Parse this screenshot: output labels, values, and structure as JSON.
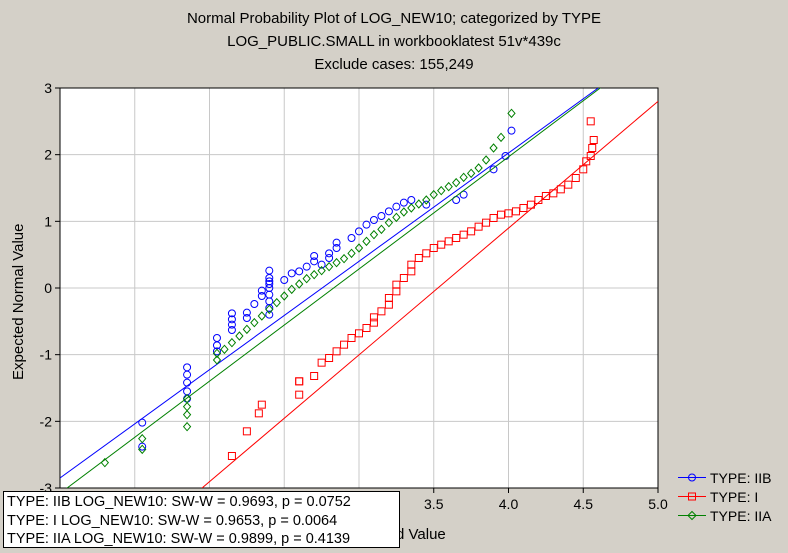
{
  "title_lines": [
    "Normal Probability Plot of LOG_NEW10; categorized by TYPE",
    "LOG_PUBLIC.SMALL in workbooklatest 51v*439c",
    "Exclude cases: 155,249"
  ],
  "colors": {
    "IIB": "#0000ff",
    "I": "#ff0000",
    "IIA": "#008000",
    "grid": "#c8c8c8",
    "background": "#d4d0c8"
  },
  "chart_data": {
    "type": "scatter",
    "title": "Normal Probability Plot of LOG_NEW10; categorized by TYPE",
    "ylabel": "Expected Normal Value",
    "xlabel_visible_fragment": "d Value",
    "xlim": [
      1.0,
      5.0
    ],
    "ylim": [
      -3,
      3
    ],
    "x_tick_labels_visible": [
      "3.5",
      "4.0",
      "4.5",
      "5.0"
    ],
    "y_tick_labels": [
      "3",
      "2",
      "1",
      "0",
      "-1",
      "-2",
      "-3"
    ],
    "grid": true,
    "legend_position": "bottom-right",
    "series": [
      {
        "name": "TYPE: IIB",
        "marker": "circle",
        "fit_line": [
          [
            1.0,
            -2.85
          ],
          [
            5.0,
            3.65
          ]
        ],
        "points": [
          [
            1.55,
            -2.38
          ],
          [
            1.55,
            -2.02
          ],
          [
            1.85,
            -1.66
          ],
          [
            1.85,
            -1.55
          ],
          [
            1.85,
            -1.42
          ],
          [
            1.85,
            -1.3
          ],
          [
            1.85,
            -1.19
          ],
          [
            2.05,
            -0.95
          ],
          [
            2.05,
            -0.86
          ],
          [
            2.05,
            -0.75
          ],
          [
            2.15,
            -0.63
          ],
          [
            2.15,
            -0.55
          ],
          [
            2.15,
            -0.47
          ],
          [
            2.15,
            -0.38
          ],
          [
            2.25,
            -0.45
          ],
          [
            2.25,
            -0.37
          ],
          [
            2.3,
            -0.24
          ],
          [
            2.35,
            -0.12
          ],
          [
            2.35,
            -0.04
          ],
          [
            2.4,
            0.06
          ],
          [
            2.4,
            0.1
          ],
          [
            2.4,
            -0.4
          ],
          [
            2.4,
            -0.3
          ],
          [
            2.4,
            -0.2
          ],
          [
            2.4,
            -0.1
          ],
          [
            2.4,
            0.0
          ],
          [
            2.4,
            0.15
          ],
          [
            2.4,
            0.26
          ],
          [
            2.5,
            0.12
          ],
          [
            2.55,
            0.22
          ],
          [
            2.6,
            0.25
          ],
          [
            2.65,
            0.32
          ],
          [
            2.7,
            0.4
          ],
          [
            2.7,
            0.48
          ],
          [
            2.75,
            0.35
          ],
          [
            2.8,
            0.45
          ],
          [
            2.8,
            0.52
          ],
          [
            2.85,
            0.6
          ],
          [
            2.85,
            0.68
          ],
          [
            2.95,
            0.75
          ],
          [
            3.0,
            0.85
          ],
          [
            3.05,
            0.95
          ],
          [
            3.1,
            1.02
          ],
          [
            3.15,
            1.08
          ],
          [
            3.2,
            1.15
          ],
          [
            3.25,
            1.22
          ],
          [
            3.3,
            1.28
          ],
          [
            3.35,
            1.32
          ],
          [
            3.45,
            1.25
          ],
          [
            3.65,
            1.32
          ],
          [
            3.7,
            1.4
          ],
          [
            3.9,
            1.78
          ],
          [
            3.98,
            1.98
          ],
          [
            4.02,
            2.36
          ]
        ]
      },
      {
        "name": "TYPE: I",
        "marker": "square",
        "fit_line": [
          [
            1.95,
            -3.0
          ],
          [
            5.0,
            2.8
          ]
        ],
        "points": [
          [
            2.25,
            -2.15
          ],
          [
            2.15,
            -2.52
          ],
          [
            2.33,
            -1.88
          ],
          [
            2.35,
            -1.75
          ],
          [
            2.6,
            -1.6
          ],
          [
            2.6,
            -1.4
          ],
          [
            2.6,
            -1.4
          ],
          [
            2.7,
            -1.32
          ],
          [
            2.75,
            -1.12
          ],
          [
            2.8,
            -1.05
          ],
          [
            2.85,
            -0.95
          ],
          [
            2.9,
            -0.85
          ],
          [
            2.95,
            -0.75
          ],
          [
            3.0,
            -0.68
          ],
          [
            3.05,
            -0.6
          ],
          [
            3.1,
            -0.52
          ],
          [
            3.1,
            -0.44
          ],
          [
            3.15,
            -0.35
          ],
          [
            3.2,
            -0.25
          ],
          [
            3.2,
            -0.15
          ],
          [
            3.25,
            -0.05
          ],
          [
            3.25,
            0.05
          ],
          [
            3.3,
            0.15
          ],
          [
            3.35,
            0.25
          ],
          [
            3.35,
            0.35
          ],
          [
            3.4,
            0.45
          ],
          [
            3.45,
            0.52
          ],
          [
            3.5,
            0.6
          ],
          [
            3.55,
            0.65
          ],
          [
            3.6,
            0.7
          ],
          [
            3.65,
            0.75
          ],
          [
            3.7,
            0.8
          ],
          [
            3.75,
            0.85
          ],
          [
            3.8,
            0.92
          ],
          [
            3.85,
            0.98
          ],
          [
            3.9,
            1.05
          ],
          [
            3.95,
            1.1
          ],
          [
            4.0,
            1.12
          ],
          [
            4.05,
            1.15
          ],
          [
            4.1,
            1.2
          ],
          [
            4.15,
            1.25
          ],
          [
            4.2,
            1.32
          ],
          [
            4.25,
            1.38
          ],
          [
            4.3,
            1.42
          ],
          [
            4.35,
            1.48
          ],
          [
            4.4,
            1.55
          ],
          [
            4.45,
            1.65
          ],
          [
            4.5,
            1.78
          ],
          [
            4.52,
            1.9
          ],
          [
            4.55,
            1.98
          ],
          [
            4.56,
            2.1
          ],
          [
            4.57,
            2.22
          ],
          [
            4.55,
            2.5
          ]
        ]
      },
      {
        "name": "TYPE: IIA",
        "marker": "diamond",
        "fit_line": [
          [
            1.0,
            -3.08
          ],
          [
            5.0,
            3.65
          ]
        ],
        "points": [
          [
            1.3,
            -2.62
          ],
          [
            1.55,
            -2.42
          ],
          [
            1.55,
            -2.26
          ],
          [
            1.85,
            -2.08
          ],
          [
            1.85,
            -1.9
          ],
          [
            1.85,
            -1.78
          ],
          [
            1.85,
            -1.66
          ],
          [
            2.05,
            -1.08
          ],
          [
            2.05,
            -0.98
          ],
          [
            2.1,
            -0.92
          ],
          [
            2.15,
            -0.82
          ],
          [
            2.2,
            -0.72
          ],
          [
            2.25,
            -0.62
          ],
          [
            2.3,
            -0.52
          ],
          [
            2.35,
            -0.42
          ],
          [
            2.4,
            -0.32
          ],
          [
            2.45,
            -0.22
          ],
          [
            2.5,
            -0.12
          ],
          [
            2.55,
            -0.02
          ],
          [
            2.6,
            0.06
          ],
          [
            2.65,
            0.14
          ],
          [
            2.7,
            0.2
          ],
          [
            2.75,
            0.26
          ],
          [
            2.8,
            0.32
          ],
          [
            2.85,
            0.38
          ],
          [
            2.9,
            0.44
          ],
          [
            2.95,
            0.52
          ],
          [
            3.0,
            0.6
          ],
          [
            3.05,
            0.7
          ],
          [
            3.1,
            0.8
          ],
          [
            3.15,
            0.88
          ],
          [
            3.2,
            0.98
          ],
          [
            3.25,
            1.06
          ],
          [
            3.3,
            1.14
          ],
          [
            3.35,
            1.2
          ],
          [
            3.4,
            1.26
          ],
          [
            3.45,
            1.32
          ],
          [
            3.5,
            1.4
          ],
          [
            3.55,
            1.46
          ],
          [
            3.6,
            1.52
          ],
          [
            3.65,
            1.58
          ],
          [
            3.7,
            1.66
          ],
          [
            3.75,
            1.72
          ],
          [
            3.8,
            1.8
          ],
          [
            3.85,
            1.92
          ],
          [
            3.9,
            2.1
          ],
          [
            3.95,
            2.26
          ],
          [
            4.02,
            2.62
          ]
        ]
      }
    ]
  },
  "legend": {
    "entries": [
      {
        "label": "TYPE: IIB",
        "color_key": "IIB",
        "marker": "circle"
      },
      {
        "label": "TYPE: I",
        "color_key": "I",
        "marker": "square"
      },
      {
        "label": "TYPE: IIA",
        "color_key": "IIA",
        "marker": "diamond"
      }
    ]
  },
  "stats": {
    "lines": [
      "TYPE: IIB  LOG_NEW10:  SW-W = 0.9693, p = 0.0752",
      "TYPE: I  LOG_NEW10:  SW-W = 0.9653, p = 0.0064",
      "TYPE: IIA  LOG_NEW10:  SW-W = 0.9899, p = 0.4139"
    ]
  }
}
